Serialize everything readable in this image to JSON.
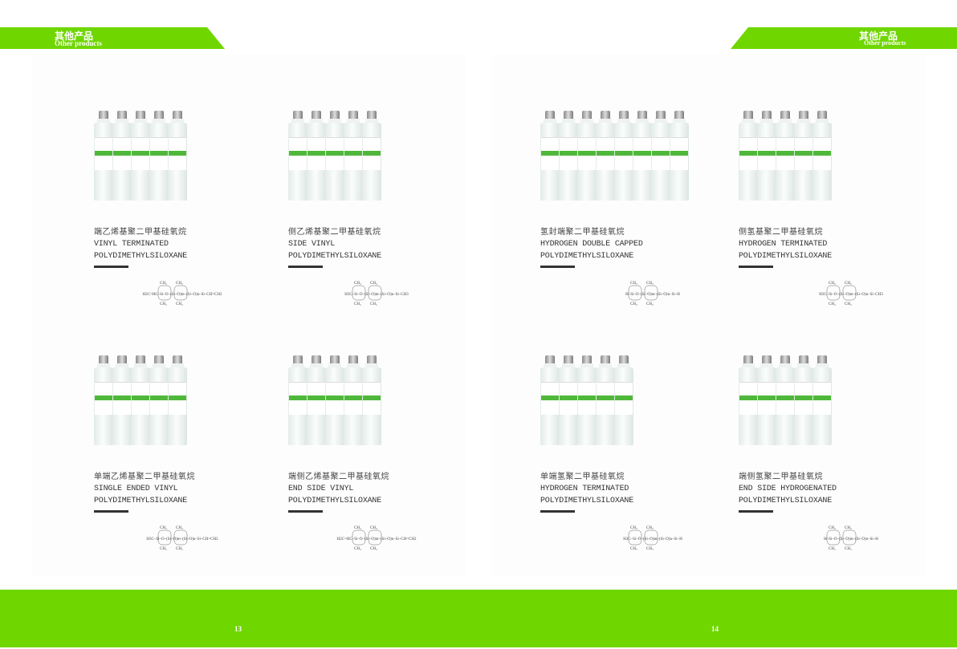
{
  "header": {
    "title_zh": "其他产品",
    "title_en": "Other products"
  },
  "colors": {
    "accent": "#6fd600",
    "text": "#333333"
  },
  "products": [
    {
      "name_zh": "端乙烯基聚二甲基硅氧烷",
      "name_en_1": "VINYL TERMINATED",
      "name_en_2": "POLYDIMETHYLSILOXANE",
      "formula": "H2C=HC–Si–O–(Si–O)m–(Si–O)n–Si–CH=CH2"
    },
    {
      "name_zh": "侧乙烯基聚二甲基硅氧烷",
      "name_en_1": "SIDE VINYL",
      "name_en_2": "POLYDIMETHYLSILOXANE",
      "formula": "H3C–Si–O–(Si–O)m–(Si–O)n–Si–CH3"
    },
    {
      "name_zh": "氢封端聚二甲基硅氧烷",
      "name_en_1": "HYDROGEN DOUBLE CAPPED",
      "name_en_2": "POLYDIMETHYLSILOXANE",
      "formula": "H–Si–O–(Si–O)m–(Si–O)n–Si–H"
    },
    {
      "name_zh": "侧氢基聚二甲基硅氧烷",
      "name_en_1": "HYDROGEN TERMINATED",
      "name_en_2": "POLYDIMETHYLSILOXANE",
      "formula": "H3C–Si–O–(Si–O)m–(Si–O)n–Si–CH3"
    },
    {
      "name_zh": "单端乙烯基聚二甲基硅氧烷",
      "name_en_1": "SINGLE ENDED VINYL",
      "name_en_2": "POLYDIMETHYLSILOXANE",
      "formula": "H3C–Si–O–(Si–O)m–(Si–O)n–Si–CH=CH2"
    },
    {
      "name_zh": "端侧乙烯基聚二甲基硅氧烷",
      "name_en_1": "END SIDE VINYL",
      "name_en_2": "POLYDIMETHYLSILOXANE",
      "formula": "H2C=HC–Si–O–(Si–O)m–(Si–O)n–Si–CH=CH2"
    },
    {
      "name_zh": "单端氢聚二甲基硅氧烷",
      "name_en_1": "HYDROGEN TERMINATED",
      "name_en_2": "POLYDIMETHYLSILOXANE",
      "formula": "H3C–Si–O–(Si–O)m–(Si–O)n–Si–H"
    },
    {
      "name_zh": "端侧氢聚二甲基硅氧烷",
      "name_en_1": "END SIDE HYDROGENATED",
      "name_en_2": "POLYDIMETHYLSILOXANE",
      "formula": "H–Si–O–(Si–O)m–(Si–O)n–Si–H"
    }
  ],
  "footer": {
    "page_left": "13",
    "page_right": "14"
  }
}
